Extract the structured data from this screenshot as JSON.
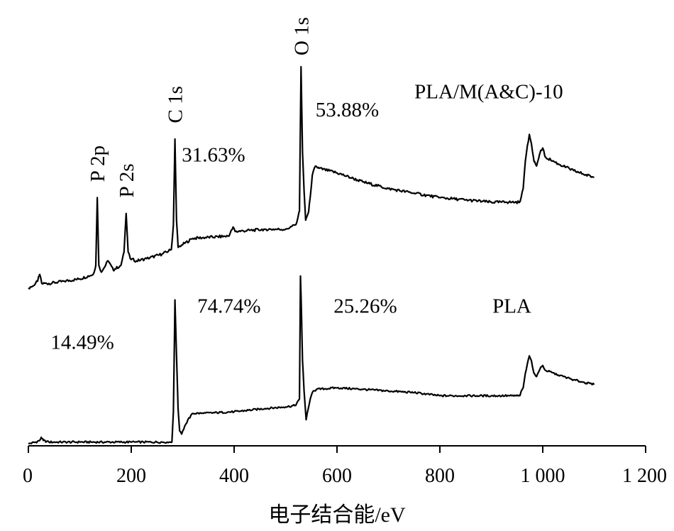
{
  "chart_data": {
    "type": "line",
    "xlabel": "电子结合能/eV",
    "ylabel": "",
    "xlim": [
      0,
      1200
    ],
    "xticks": [
      0,
      200,
      400,
      600,
      800,
      1000,
      1200
    ],
    "xtick_labels": [
      "0",
      "200",
      "400",
      "600",
      "800",
      "1 000",
      "1 200"
    ],
    "y_ticks_shown": false,
    "grid": false,
    "series": [
      {
        "name": "PLA/M(A&C)-10",
        "color": "#000000",
        "points": [
          [
            0,
            0.02
          ],
          [
            10,
            0.03
          ],
          [
            18,
            0.05
          ],
          [
            22,
            0.08
          ],
          [
            26,
            0.04
          ],
          [
            40,
            0.04
          ],
          [
            70,
            0.05
          ],
          [
            100,
            0.06
          ],
          [
            126,
            0.08
          ],
          [
            131,
            0.12
          ],
          [
            134,
            0.42
          ],
          [
            137,
            0.12
          ],
          [
            142,
            0.09
          ],
          [
            155,
            0.14
          ],
          [
            165,
            0.1
          ],
          [
            180,
            0.12
          ],
          [
            186,
            0.18
          ],
          [
            190,
            0.35
          ],
          [
            194,
            0.18
          ],
          [
            198,
            0.15
          ],
          [
            210,
            0.14
          ],
          [
            230,
            0.15
          ],
          [
            260,
            0.17
          ],
          [
            278,
            0.19
          ],
          [
            282,
            0.3
          ],
          [
            285,
            0.68
          ],
          [
            288,
            0.32
          ],
          [
            291,
            0.2
          ],
          [
            298,
            0.21
          ],
          [
            320,
            0.24
          ],
          [
            390,
            0.25
          ],
          [
            398,
            0.29
          ],
          [
            402,
            0.27
          ],
          [
            460,
            0.28
          ],
          [
            500,
            0.28
          ],
          [
            520,
            0.3
          ],
          [
            527,
            0.36
          ],
          [
            530,
            1.0
          ],
          [
            533,
            0.62
          ],
          [
            536,
            0.45
          ],
          [
            539,
            0.32
          ],
          [
            545,
            0.36
          ],
          [
            552,
            0.52
          ],
          [
            558,
            0.56
          ],
          [
            565,
            0.55
          ],
          [
            600,
            0.53
          ],
          [
            650,
            0.49
          ],
          [
            700,
            0.46
          ],
          [
            750,
            0.44
          ],
          [
            800,
            0.42
          ],
          [
            850,
            0.41
          ],
          [
            900,
            0.4
          ],
          [
            930,
            0.4
          ],
          [
            955,
            0.4
          ],
          [
            962,
            0.46
          ],
          [
            966,
            0.58
          ],
          [
            970,
            0.65
          ],
          [
            974,
            0.7
          ],
          [
            978,
            0.66
          ],
          [
            983,
            0.58
          ],
          [
            988,
            0.56
          ],
          [
            995,
            0.62
          ],
          [
            1000,
            0.64
          ],
          [
            1005,
            0.6
          ],
          [
            1030,
            0.57
          ],
          [
            1060,
            0.54
          ],
          [
            1085,
            0.52
          ],
          [
            1100,
            0.51
          ]
        ]
      },
      {
        "name": "PLA",
        "color": "#000000",
        "points": [
          [
            0,
            0.0
          ],
          [
            15,
            0.01
          ],
          [
            22,
            0.02
          ],
          [
            25,
            0.04
          ],
          [
            29,
            0.02
          ],
          [
            40,
            0.01
          ],
          [
            100,
            0.01
          ],
          [
            200,
            0.01
          ],
          [
            270,
            0.01
          ],
          [
            279,
            0.01
          ],
          [
            282,
            0.2
          ],
          [
            285,
            0.9
          ],
          [
            288,
            0.55
          ],
          [
            291,
            0.22
          ],
          [
            294,
            0.08
          ],
          [
            298,
            0.06
          ],
          [
            302,
            0.09
          ],
          [
            310,
            0.15
          ],
          [
            320,
            0.19
          ],
          [
            340,
            0.19
          ],
          [
            400,
            0.2
          ],
          [
            460,
            0.22
          ],
          [
            500,
            0.23
          ],
          [
            520,
            0.24
          ],
          [
            527,
            0.28
          ],
          [
            529,
            1.05
          ],
          [
            531,
            0.8
          ],
          [
            533,
            0.52
          ],
          [
            536,
            0.33
          ],
          [
            540,
            0.15
          ],
          [
            548,
            0.28
          ],
          [
            552,
            0.32
          ],
          [
            560,
            0.34
          ],
          [
            600,
            0.35
          ],
          [
            650,
            0.34
          ],
          [
            700,
            0.33
          ],
          [
            750,
            0.32
          ],
          [
            800,
            0.3
          ],
          [
            850,
            0.3
          ],
          [
            900,
            0.3
          ],
          [
            940,
            0.3
          ],
          [
            955,
            0.3
          ],
          [
            962,
            0.35
          ],
          [
            966,
            0.44
          ],
          [
            970,
            0.5
          ],
          [
            974,
            0.55
          ],
          [
            978,
            0.52
          ],
          [
            983,
            0.44
          ],
          [
            988,
            0.42
          ],
          [
            995,
            0.47
          ],
          [
            1000,
            0.49
          ],
          [
            1005,
            0.46
          ],
          [
            1030,
            0.43
          ],
          [
            1060,
            0.4
          ],
          [
            1085,
            0.38
          ],
          [
            1100,
            0.37
          ]
        ]
      }
    ],
    "annotations": [
      {
        "text": "O 1s",
        "series": 0,
        "x": 530,
        "rotated": true
      },
      {
        "text": "P 2p",
        "series": 0,
        "x": 134,
        "rotated": true
      },
      {
        "text": "P 2s",
        "series": 0,
        "x": 190,
        "rotated": true
      },
      {
        "text": "C 1s",
        "series": 0,
        "x": 285,
        "rotated": true
      },
      {
        "text": "53.88%",
        "series": 0,
        "x": 620,
        "y": 0.78
      },
      {
        "text": "31.63%",
        "series": 0,
        "x": 360,
        "y": 0.58
      },
      {
        "text": "14.49%",
        "series": 0,
        "x": 105,
        "y": -0.25
      },
      {
        "text": "PLA/M(A&C)-10",
        "series": 0,
        "x": 895,
        "y": 0.86
      },
      {
        "text": "74.74%",
        "series": 1,
        "x": 390,
        "y": 0.82
      },
      {
        "text": "25.26%",
        "series": 1,
        "x": 655,
        "y": 0.82
      },
      {
        "text": "PLA",
        "series": 1,
        "x": 940,
        "y": 0.82
      }
    ]
  }
}
